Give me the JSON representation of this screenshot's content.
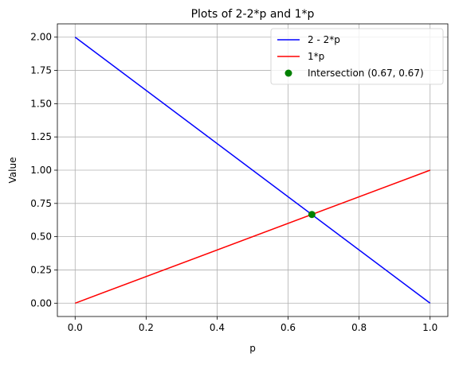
{
  "chart_data": {
    "type": "line",
    "title": "Plots of 2-2*p and 1*p",
    "xlabel": "p",
    "ylabel": "Value",
    "xlim": [
      -0.05,
      1.05
    ],
    "ylim": [
      -0.1,
      2.1
    ],
    "xticks": [
      0.0,
      0.2,
      0.4,
      0.6,
      0.8,
      1.0
    ],
    "xtick_labels": [
      "0.0",
      "0.2",
      "0.4",
      "0.6",
      "0.8",
      "1.0"
    ],
    "yticks": [
      0.0,
      0.25,
      0.5,
      0.75,
      1.0,
      1.25,
      1.5,
      1.75,
      2.0
    ],
    "ytick_labels": [
      "0.00",
      "0.25",
      "0.50",
      "0.75",
      "1.00",
      "1.25",
      "1.50",
      "1.75",
      "2.00"
    ],
    "grid": true,
    "legend_position": "top-right",
    "series": [
      {
        "name": "2 - 2*p",
        "color": "#0000ff",
        "x": [
          0.0,
          1.0
        ],
        "y": [
          2.0,
          0.0
        ]
      },
      {
        "name": "1*p",
        "color": "#ff0000",
        "x": [
          0.0,
          1.0
        ],
        "y": [
          0.0,
          1.0
        ]
      }
    ],
    "points": [
      {
        "name": "Intersection (0.67, 0.67)",
        "color": "#008000",
        "x": 0.667,
        "y": 0.667
      }
    ]
  }
}
